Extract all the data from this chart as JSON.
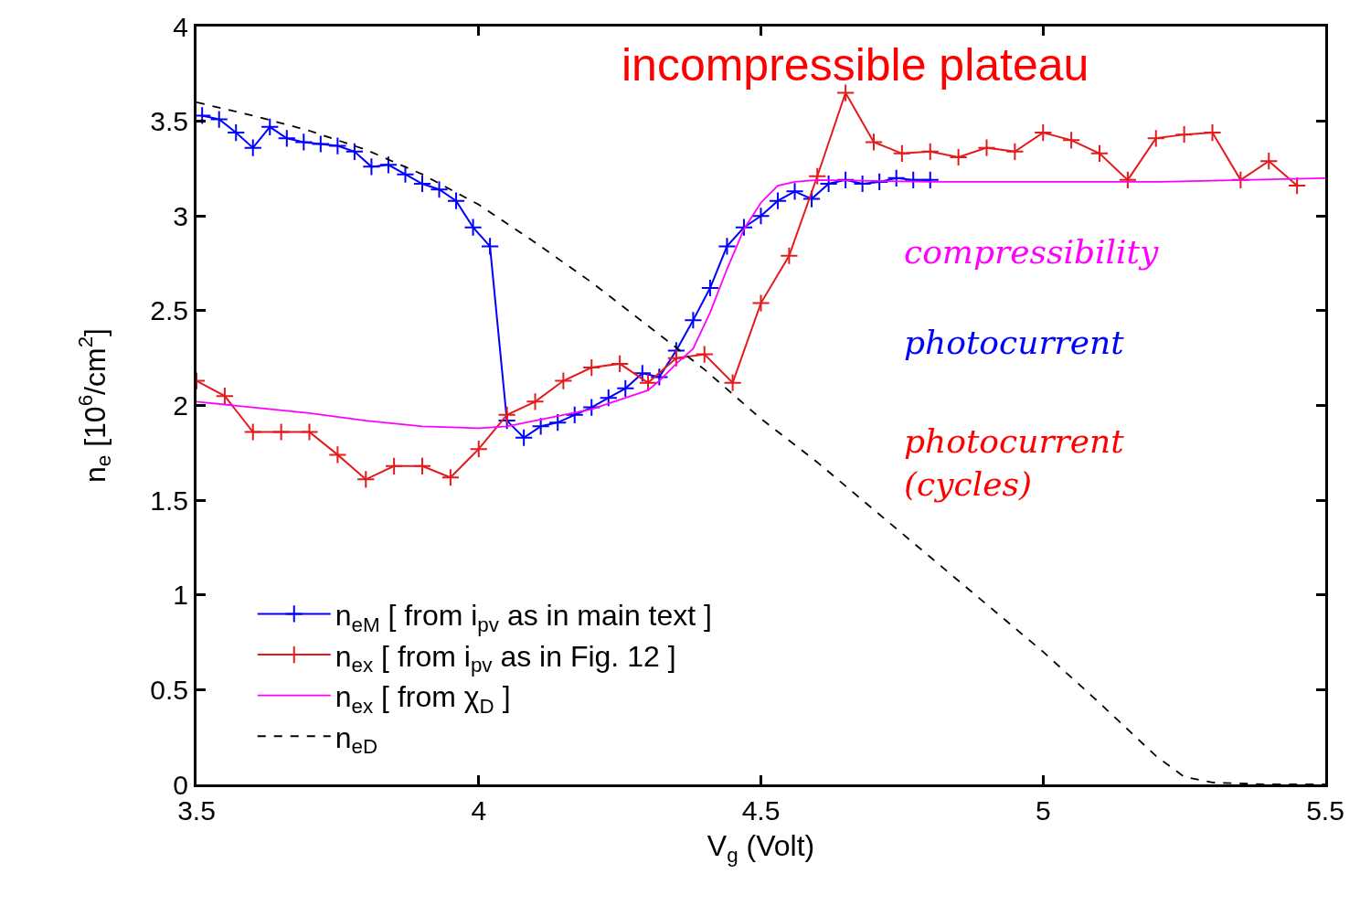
{
  "chart_data": {
    "type": "line",
    "xlabel": "V$_{g}$ (Volt)",
    "ylabel": "n$_{e}$ [10$^{6}$/cm$^{2}$]",
    "xlim": [
      3.5,
      5.5
    ],
    "xticks": [
      3.5,
      4,
      4.5,
      5,
      5.5
    ],
    "ylim": [
      0,
      4
    ],
    "yticks": [
      0,
      0.5,
      1,
      1.5,
      2,
      2.5,
      3,
      3.5,
      4
    ],
    "legend": "bottom",
    "annotations": [
      "incompressible plateau",
      "compressibility",
      "photocurrent",
      "photocurrent\n(cycles)"
    ],
    "series": [
      {
        "name": "n$_{eM}$ [ from i$_{pv}$ as in main text ]",
        "color": "#0000ff",
        "marker": "cross",
        "line_style": "solid",
        "x": [
          3.51,
          3.54,
          3.57,
          3.6,
          3.63,
          3.66,
          3.69,
          3.72,
          3.75,
          3.78,
          3.81,
          3.84,
          3.87,
          3.9,
          3.93,
          3.96,
          3.99,
          4.02,
          4.05,
          4.08,
          4.11,
          4.14,
          4.17,
          4.2,
          4.23,
          4.26,
          4.29,
          4.32,
          4.35,
          4.38,
          4.41,
          4.44,
          4.47,
          4.5,
          4.53,
          4.56,
          4.59,
          4.62,
          4.65,
          4.68,
          4.71,
          4.74,
          4.77,
          4.8
        ],
        "values": [
          3.53,
          3.51,
          3.44,
          3.36,
          3.47,
          3.41,
          3.39,
          3.38,
          3.37,
          3.34,
          3.26,
          3.27,
          3.22,
          3.17,
          3.14,
          3.08,
          2.94,
          2.84,
          1.92,
          1.83,
          1.89,
          1.91,
          1.95,
          1.99,
          2.04,
          2.09,
          2.17,
          2.15,
          2.29,
          2.45,
          2.62,
          2.84,
          2.94,
          3.0,
          3.08,
          3.13,
          3.09,
          3.17,
          3.19,
          3.17,
          3.18,
          3.2,
          3.19,
          3.19
        ]
      },
      {
        "name": "n$_{ex}$ [ from i$_{pv}$ as in Fig. 12 ]",
        "color": "#e41a1c",
        "marker": "cross",
        "line_style": "solid",
        "x": [
          3.5,
          3.55,
          3.6,
          3.65,
          3.7,
          3.75,
          3.8,
          3.85,
          3.9,
          3.95,
          4.0,
          4.05,
          4.1,
          4.15,
          4.2,
          4.25,
          4.3,
          4.35,
          4.4,
          4.45,
          4.5,
          4.55,
          4.6,
          4.65,
          4.7,
          4.75,
          4.8,
          4.85,
          4.9,
          4.95,
          5.0,
          5.05,
          5.1,
          5.15,
          5.2,
          5.25,
          5.3,
          5.35,
          5.4,
          5.45
        ],
        "values": [
          2.13,
          2.05,
          1.86,
          1.86,
          1.86,
          1.74,
          1.61,
          1.68,
          1.68,
          1.62,
          1.77,
          1.95,
          2.02,
          2.13,
          2.2,
          2.22,
          2.12,
          2.25,
          2.27,
          2.12,
          2.54,
          2.79,
          3.21,
          3.65,
          3.39,
          3.33,
          3.34,
          3.31,
          3.36,
          3.34,
          3.44,
          3.4,
          3.33,
          3.19,
          3.41,
          3.43,
          3.44,
          3.19,
          3.29,
          3.16
        ]
      },
      {
        "name": "n$_{ex}$ [ from χ$_{D}$ ]",
        "color": "#ff00ff",
        "marker": "none",
        "line_style": "solid",
        "x": [
          3.5,
          3.6,
          3.7,
          3.8,
          3.9,
          4.0,
          4.05,
          4.1,
          4.2,
          4.3,
          4.32,
          4.35,
          4.38,
          4.41,
          4.44,
          4.47,
          4.5,
          4.53,
          4.56,
          4.6,
          4.8,
          5.0,
          5.2,
          5.5
        ],
        "values": [
          2.02,
          1.99,
          1.96,
          1.92,
          1.89,
          1.88,
          1.89,
          1.92,
          1.98,
          2.08,
          2.13,
          2.22,
          2.3,
          2.49,
          2.72,
          2.93,
          3.07,
          3.16,
          3.18,
          3.19,
          3.18,
          3.18,
          3.18,
          3.2
        ]
      },
      {
        "name": "n$_{eD}$",
        "color": "#000000",
        "marker": "none",
        "line_style": "dashed",
        "x": [
          3.5,
          3.6,
          3.7,
          3.8,
          3.9,
          4.0,
          4.1,
          4.2,
          4.3,
          4.4,
          4.5,
          4.6,
          4.7,
          4.8,
          4.9,
          5.0,
          5.1,
          5.2,
          5.25,
          5.3,
          5.4,
          5.5
        ],
        "values": [
          3.6,
          3.53,
          3.45,
          3.35,
          3.22,
          3.06,
          2.86,
          2.65,
          2.42,
          2.19,
          1.93,
          1.7,
          1.45,
          1.2,
          0.95,
          0.7,
          0.43,
          0.15,
          0.04,
          0.01,
          0,
          0
        ]
      }
    ]
  }
}
